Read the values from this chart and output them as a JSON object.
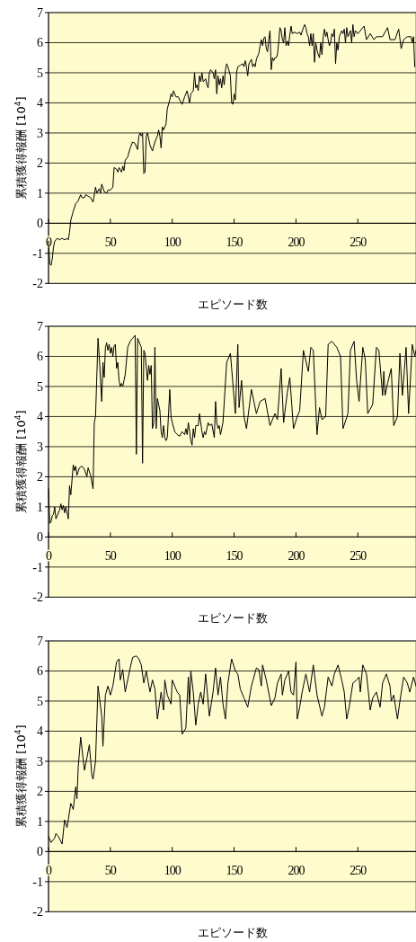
{
  "chart_data": [
    {
      "type": "line",
      "xlabel": "エピソード数",
      "ylabel": "累積獲得報酬 [10$^{4}$]",
      "xlim": [
        0,
        297
      ],
      "ylim": [
        -2,
        7
      ],
      "xticks": [
        0,
        50,
        100,
        150,
        200,
        250
      ],
      "yticks": [
        -2,
        -1,
        0,
        1,
        2,
        3,
        4,
        5,
        6,
        7
      ],
      "grid": "y",
      "x": [
        0,
        1,
        2,
        3,
        4,
        5,
        7,
        9,
        11,
        13,
        15,
        16,
        17,
        18,
        20,
        22,
        24,
        25,
        26,
        27,
        29,
        30,
        32,
        34,
        36,
        38,
        39,
        41,
        42,
        43,
        45,
        47,
        48,
        50,
        52,
        53,
        55,
        56,
        57,
        59,
        60,
        61,
        62,
        64,
        66,
        68,
        70,
        72,
        73,
        74,
        75,
        76,
        77,
        78,
        79,
        80,
        82,
        84,
        86,
        88,
        89,
        90,
        91,
        92,
        93,
        95,
        96,
        98,
        99,
        100,
        101,
        103,
        105,
        106,
        108,
        110,
        112,
        114,
        115,
        117,
        118,
        119,
        120,
        121,
        122,
        123,
        124,
        125,
        127,
        128,
        129,
        130,
        131,
        133,
        134,
        135,
        136,
        137,
        138,
        139,
        140,
        141,
        142,
        143,
        144,
        145,
        147,
        148,
        149,
        150,
        151,
        152,
        153,
        155,
        157,
        158,
        159,
        160,
        161,
        162,
        164,
        165,
        166,
        167,
        168,
        170,
        171,
        172,
        173,
        174,
        175,
        176,
        177,
        178,
        179,
        180,
        181,
        182,
        183,
        184,
        185,
        186,
        187,
        188,
        189,
        190,
        191,
        192,
        193,
        194,
        195,
        196,
        197,
        199,
        201,
        203,
        204,
        206,
        207,
        208,
        209,
        210,
        211,
        212,
        213,
        214,
        215,
        216,
        217,
        218,
        219,
        220,
        221,
        222,
        223,
        224,
        225,
        226,
        227,
        228,
        229,
        230,
        231,
        232,
        233,
        234,
        235,
        237,
        238,
        239,
        240,
        241,
        242,
        244,
        245,
        246,
        247,
        248,
        250,
        255,
        257,
        260,
        263,
        265,
        270,
        274,
        276,
        280,
        283,
        285,
        287,
        290,
        293,
        294,
        295,
        296
      ],
      "series": [
        {
          "color": "#000000",
          "values": [
            -0.6,
            -1.35,
            -1.4,
            -1.2,
            -0.8,
            -0.6,
            -0.5,
            -0.55,
            -0.5,
            -0.55,
            -0.5,
            -0.55,
            -0.3,
            0.1,
            0.4,
            0.65,
            0.75,
            0.85,
            0.95,
            0.85,
            0.85,
            0.95,
            0.9,
            0.85,
            0.7,
            1.2,
            1.0,
            1.15,
            1.0,
            1.3,
            1.05,
            1.0,
            1.1,
            1.1,
            1.2,
            1.85,
            1.8,
            1.7,
            1.85,
            1.7,
            1.9,
            1.75,
            2.1,
            2.2,
            2.5,
            2.7,
            2.65,
            2.45,
            2.9,
            3.0,
            2.9,
            3.0,
            1.65,
            1.7,
            2.9,
            3.0,
            2.6,
            2.4,
            2.7,
            2.9,
            3.1,
            2.9,
            2.5,
            3.2,
            3.1,
            3.3,
            3.8,
            4.1,
            4.3,
            4.2,
            4.4,
            4.2,
            4.2,
            4.1,
            3.95,
            4.2,
            4.4,
            4.0,
            4.3,
            4.4,
            5.0,
            4.5,
            4.6,
            4.4,
            4.9,
            4.7,
            5.0,
            4.7,
            4.8,
            4.6,
            4.5,
            5.0,
            5.1,
            5.0,
            4.8,
            5.1,
            4.3,
            4.9,
            4.6,
            4.8,
            4.5,
            4.9,
            4.6,
            5.1,
            5.3,
            5.2,
            4.9,
            4.0,
            3.95,
            4.3,
            4.1,
            5.0,
            5.2,
            5.25,
            5.3,
            5.2,
            5.4,
            5.2,
            4.9,
            5.3,
            5.45,
            5.2,
            5.3,
            5.2,
            5.45,
            5.65,
            5.9,
            6.1,
            5.9,
            6.15,
            6.2,
            5.8,
            5.7,
            6.1,
            6.4,
            5.1,
            5.5,
            5.4,
            5.5,
            5.5,
            5.6,
            6.0,
            6.5,
            6.4,
            6.1,
            6.0,
            6.5,
            5.9,
            6.05,
            5.9,
            6.25,
            6.55,
            6.3,
            6.35,
            6.3,
            6.35,
            6.25,
            6.5,
            6.6,
            6.5,
            6.3,
            6.2,
            5.9,
            6.3,
            5.9,
            6.3,
            5.35,
            6.0,
            5.75,
            5.6,
            5.5,
            6.0,
            5.6,
            6.2,
            6.45,
            6.2,
            6.35,
            6.1,
            5.9,
            6.0,
            6.3,
            6.2,
            6.45,
            5.3,
            6.0,
            5.75,
            6.2,
            6.4,
            6.3,
            6.45,
            6.0,
            6.5,
            6.2,
            6.4,
            6.0,
            6.6,
            6.2,
            6.4,
            6.3,
            6.55,
            6.1,
            6.3,
            6.1,
            6.2,
            6.2,
            6.5,
            6.1,
            6.1,
            6.45,
            5.8,
            6.1,
            6.2,
            6.2,
            6.0,
            6.2,
            5.2
          ]
        }
      ]
    },
    {
      "type": "line",
      "xlabel": "エピソード数",
      "ylabel": "累積獲得報酬 [10$^{4}$]",
      "xlim": [
        0,
        297
      ],
      "ylim": [
        -2,
        7
      ],
      "xticks": [
        0,
        50,
        100,
        150,
        200,
        250
      ],
      "yticks": [
        -2,
        -1,
        0,
        1,
        2,
        3,
        4,
        5,
        6,
        7
      ],
      "grid": "y",
      "x": [
        0,
        1,
        2,
        3,
        4,
        5,
        6,
        7,
        9,
        10,
        11,
        12,
        13,
        14,
        16,
        17,
        18,
        20,
        21,
        22,
        23,
        25,
        27,
        29,
        31,
        32,
        34,
        36,
        37,
        38,
        40,
        41,
        43,
        44,
        45,
        46,
        47,
        48,
        49,
        50,
        51,
        52,
        53,
        54,
        55,
        56,
        57,
        58,
        59,
        60,
        61,
        62,
        64,
        66,
        68,
        70,
        71,
        72,
        74,
        75,
        76,
        77,
        78,
        80,
        81,
        82,
        83,
        84,
        85,
        86,
        87,
        88,
        89,
        90,
        91,
        92,
        93,
        94,
        95,
        96,
        98,
        99,
        100,
        102,
        104,
        106,
        108,
        110,
        111,
        112,
        113,
        115,
        116,
        117,
        118,
        119,
        121,
        122,
        124,
        125,
        126,
        127,
        129,
        130,
        132,
        134,
        135,
        136,
        137,
        138,
        139,
        141,
        144,
        147,
        148,
        151,
        153,
        154,
        156,
        158,
        160,
        164,
        168,
        171,
        175,
        179,
        183,
        185,
        188,
        190,
        193,
        195,
        198,
        201,
        203,
        206,
        210,
        212,
        214,
        217,
        219,
        221,
        224,
        226,
        229,
        233,
        236,
        238,
        242,
        244,
        247,
        249,
        251,
        254,
        256,
        258,
        262,
        265,
        267,
        270,
        271,
        272,
        274,
        277,
        279,
        282,
        284,
        286,
        289,
        291,
        294,
        296,
        297
      ],
      "series": [
        {
          "color": "#000000",
          "values": [
            1.6,
            0.45,
            0.5,
            0.7,
            0.75,
            1.0,
            0.6,
            0.7,
            0.9,
            1.1,
            0.9,
            1.05,
            0.8,
            1.0,
            0.6,
            1.7,
            1.4,
            2.4,
            2.2,
            2.35,
            2.05,
            2.3,
            2.35,
            2.25,
            2.0,
            2.3,
            2.05,
            1.6,
            3.8,
            4.0,
            6.6,
            6.0,
            4.5,
            5.8,
            5.3,
            6.3,
            6.45,
            6.2,
            6.4,
            6.1,
            6.3,
            6.0,
            6.35,
            6.4,
            5.6,
            5.8,
            5.2,
            5.0,
            5.1,
            5.0,
            5.2,
            5.4,
            6.3,
            6.5,
            6.6,
            6.7,
            2.75,
            6.6,
            6.4,
            6.3,
            2.45,
            6.2,
            6.1,
            5.2,
            5.7,
            5.4,
            5.7,
            3.6,
            3.8,
            6.3,
            3.6,
            4.6,
            4.4,
            4.2,
            3.5,
            3.3,
            3.7,
            3.3,
            3.2,
            3.3,
            4.9,
            4.0,
            3.8,
            3.5,
            3.4,
            3.35,
            3.5,
            3.4,
            3.6,
            3.4,
            3.8,
            3.2,
            3.05,
            3.6,
            3.3,
            3.7,
            3.7,
            4.1,
            3.5,
            3.3,
            3.5,
            3.4,
            3.8,
            3.7,
            3.75,
            3.3,
            4.5,
            3.8,
            3.6,
            3.7,
            3.4,
            3.8,
            5.8,
            6.1,
            5.6,
            4.1,
            6.4,
            4.3,
            5.2,
            4.0,
            3.6,
            4.9,
            4.1,
            4.5,
            4.6,
            3.7,
            4.1,
            3.9,
            5.6,
            3.8,
            4.8,
            5.3,
            3.6,
            4.0,
            4.2,
            6.2,
            5.5,
            6.3,
            6.2,
            3.4,
            4.3,
            3.9,
            4.0,
            6.4,
            6.5,
            6.3,
            6.0,
            3.6,
            4.1,
            6.2,
            6.5,
            5.2,
            4.5,
            6.3,
            5.9,
            4.1,
            4.4,
            6.3,
            6.2,
            4.7,
            5.5,
            4.7,
            5.1,
            5.6,
            3.7,
            4.0,
            6.1,
            4.7,
            6.3,
            4.1,
            6.4,
            6.0,
            6.2
          ]
        }
      ]
    },
    {
      "type": "line",
      "xlabel": "エピソード数",
      "ylabel": "累積獲得報酬 [10$^{4}$]",
      "xlim": [
        0,
        297
      ],
      "ylim": [
        -2,
        7
      ],
      "xticks": [
        0,
        50,
        100,
        150,
        200,
        250
      ],
      "yticks": [
        -2,
        -1,
        0,
        1,
        2,
        3,
        4,
        5,
        6,
        7
      ],
      "grid": "y",
      "x": [
        0,
        2,
        5,
        6,
        8,
        11,
        13,
        15,
        18,
        20,
        22,
        23,
        24,
        26,
        29,
        31,
        33,
        35,
        36,
        38,
        40,
        43,
        44,
        46,
        48,
        50,
        52,
        55,
        57,
        58,
        60,
        62,
        66,
        68,
        71,
        73,
        75,
        77,
        79,
        82,
        84,
        86,
        88,
        91,
        93,
        94,
        96,
        99,
        100,
        104,
        106,
        108,
        111,
        113,
        114,
        115,
        117,
        119,
        121,
        123,
        125,
        127,
        130,
        133,
        135,
        137,
        139,
        141,
        143,
        145,
        148,
        151,
        153,
        155,
        158,
        161,
        164,
        168,
        170,
        172,
        173,
        176,
        180,
        183,
        185,
        188,
        189,
        191,
        194,
        196,
        198,
        200,
        201,
        203,
        205,
        208,
        211,
        214,
        217,
        221,
        223,
        226,
        229,
        231,
        234,
        237,
        239,
        241,
        243,
        246,
        249,
        251,
        252,
        254,
        257,
        260,
        262,
        265,
        268,
        270,
        273,
        276,
        277,
        279,
        282,
        284,
        287,
        290,
        292,
        295,
        297
      ],
      "series": [
        {
          "color": "#000000",
          "values": [
            0.5,
            0.3,
            0.45,
            0.6,
            0.5,
            0.25,
            1.05,
            0.8,
            1.6,
            1.4,
            2.15,
            1.75,
            2.8,
            3.8,
            2.7,
            3.1,
            3.55,
            2.55,
            2.4,
            3.0,
            5.5,
            4.5,
            3.5,
            5.2,
            5.5,
            5.2,
            5.5,
            6.3,
            6.4,
            5.7,
            6.05,
            5.3,
            6.1,
            6.45,
            6.5,
            6.4,
            6.2,
            5.6,
            6.0,
            5.3,
            5.7,
            5.4,
            4.4,
            5.3,
            4.7,
            5.7,
            5.2,
            4.9,
            5.7,
            5.3,
            5.2,
            3.9,
            4.1,
            5.8,
            4.9,
            6.0,
            5.3,
            4.2,
            4.9,
            5.3,
            4.9,
            5.9,
            4.5,
            5.3,
            6.1,
            5.2,
            5.8,
            4.9,
            4.4,
            5.6,
            6.4,
            6.0,
            5.9,
            5.4,
            5.1,
            4.8,
            5.5,
            6.1,
            6.05,
            5.5,
            6.2,
            5.7,
            4.85,
            5.1,
            5.6,
            5.9,
            5.2,
            5.7,
            6.0,
            5.3,
            5.2,
            6.3,
            4.4,
            4.8,
            5.3,
            5.9,
            5.3,
            6.2,
            5.2,
            4.5,
            4.8,
            5.8,
            5.5,
            5.9,
            6.2,
            5.7,
            5.3,
            4.4,
            4.8,
            5.6,
            5.7,
            5.8,
            5.3,
            6.2,
            5.9,
            4.7,
            5.1,
            5.3,
            4.8,
            5.6,
            5.9,
            5.5,
            5.0,
            5.2,
            4.4,
            5.0,
            5.8,
            5.6,
            5.3,
            5.8,
            5.5
          ]
        }
      ]
    }
  ]
}
